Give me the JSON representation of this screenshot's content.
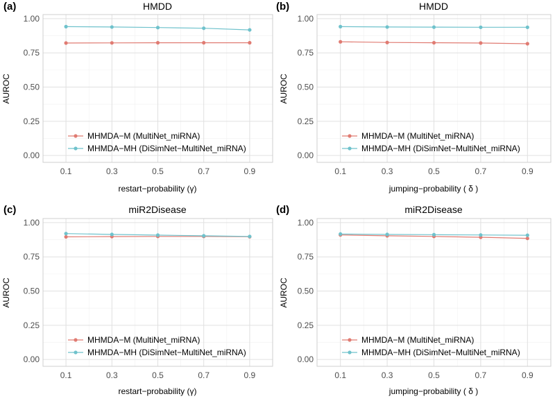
{
  "colors": {
    "series_m": "#E07B72",
    "series_mh": "#6FC2CC"
  },
  "chart_data": [
    {
      "type": "line",
      "panel_label": "(a)",
      "title": "HMDD",
      "xlabel": "restart−probability (γ)",
      "ylabel": "AUROC",
      "x": [
        0.1,
        0.3,
        0.5,
        0.7,
        0.9
      ],
      "x_tick_labels": [
        "0.1",
        "0.3",
        "0.5",
        "0.7",
        "0.9"
      ],
      "ylim": [
        -0.05,
        1.03
      ],
      "y_ticks": [
        0.0,
        0.25,
        0.5,
        0.75,
        1.0
      ],
      "y_tick_labels": [
        "0.00",
        "0.25",
        "0.50",
        "0.75",
        "1.00"
      ],
      "legend_position": "bottom-left",
      "series": [
        {
          "name": "MHMDA−M (MultiNet_miRNA)",
          "values": [
            0.822,
            0.823,
            0.824,
            0.824,
            0.824
          ]
        },
        {
          "name": "MHMDA−MH (DiSimNet−MultiNet_miRNA)",
          "values": [
            0.942,
            0.939,
            0.935,
            0.93,
            0.918
          ]
        }
      ]
    },
    {
      "type": "line",
      "panel_label": "(b)",
      "title": "HMDD",
      "xlabel": "jumping−probability ( δ )",
      "ylabel": "AUROC",
      "x": [
        0.1,
        0.3,
        0.5,
        0.7,
        0.9
      ],
      "x_tick_labels": [
        "0.1",
        "0.3",
        "0.5",
        "0.7",
        "0.9"
      ],
      "ylim": [
        -0.05,
        1.03
      ],
      "y_ticks": [
        0.0,
        0.25,
        0.5,
        0.75,
        1.0
      ],
      "y_tick_labels": [
        "0.00",
        "0.25",
        "0.50",
        "0.75",
        "1.00"
      ],
      "legend_position": "bottom-left",
      "series": [
        {
          "name": "MHMDA−M (MultiNet_miRNA)",
          "values": [
            0.831,
            0.826,
            0.824,
            0.822,
            0.817
          ]
        },
        {
          "name": "MHMDA−MH (DiSimNet−MultiNet_miRNA)",
          "values": [
            0.942,
            0.939,
            0.938,
            0.937,
            0.937
          ]
        }
      ]
    },
    {
      "type": "line",
      "panel_label": "(c)",
      "title": "miR2Disease",
      "xlabel": "restart−probability (γ)",
      "ylabel": "AUROC",
      "x": [
        0.1,
        0.3,
        0.5,
        0.7,
        0.9
      ],
      "x_tick_labels": [
        "0.1",
        "0.3",
        "0.5",
        "0.7",
        "0.9"
      ],
      "ylim": [
        -0.05,
        1.03
      ],
      "y_ticks": [
        0.0,
        0.25,
        0.5,
        0.75,
        1.0
      ],
      "y_tick_labels": [
        "0.00",
        "0.25",
        "0.50",
        "0.75",
        "1.00"
      ],
      "legend_position": "bottom-left",
      "series": [
        {
          "name": "MHMDA−M (MultiNet_miRNA)",
          "values": [
            0.896,
            0.898,
            0.899,
            0.899,
            0.897
          ]
        },
        {
          "name": "MHMDA−MH (DiSimNet−MultiNet_miRNA)",
          "values": [
            0.92,
            0.914,
            0.909,
            0.904,
            0.899
          ]
        }
      ]
    },
    {
      "type": "line",
      "panel_label": "(d)",
      "title": "miR2Disease",
      "xlabel": "jumping−probability ( δ )",
      "ylabel": "AUROC",
      "x": [
        0.1,
        0.3,
        0.5,
        0.7,
        0.9
      ],
      "x_tick_labels": [
        "0.1",
        "0.3",
        "0.5",
        "0.7",
        "0.9"
      ],
      "ylim": [
        -0.05,
        1.03
      ],
      "y_ticks": [
        0.0,
        0.25,
        0.5,
        0.75,
        1.0
      ],
      "y_tick_labels": [
        "0.00",
        "0.25",
        "0.50",
        "0.75",
        "1.00"
      ],
      "legend_position": "bottom-left",
      "series": [
        {
          "name": "MHMDA−M (MultiNet_miRNA)",
          "values": [
            0.91,
            0.904,
            0.899,
            0.893,
            0.885
          ]
        },
        {
          "name": "MHMDA−MH (DiSimNet−MultiNet_miRNA)",
          "values": [
            0.917,
            0.914,
            0.912,
            0.91,
            0.908
          ]
        }
      ]
    }
  ]
}
